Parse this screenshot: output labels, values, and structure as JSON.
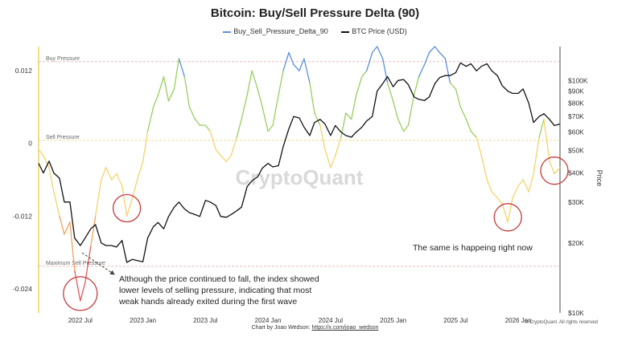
{
  "colors": {
    "red": "#e55b5b",
    "orange": "#f0a35e",
    "yellow": "#f4d36b",
    "green": "#9acd5c",
    "blue": "#5a8fe0",
    "price": "#111111",
    "annotation_circle": "#c63b3b",
    "threshold_line": "#e9a1a1",
    "sell_line": "#e8d783"
  },
  "chart_data": {
    "type": "line",
    "title": "Bitcoin: Buy/Sell Pressure Delta (90)",
    "legend": {
      "placement": "top-center",
      "items": [
        {
          "label": "Buy_Sell_Pressure_Delta_90",
          "color": "#5a8fe0"
        },
        {
          "label": "BTC Price (USD)",
          "color": "#111111"
        }
      ]
    },
    "x": {
      "range": [
        "2022-03",
        "2026-05"
      ],
      "tick_labels": [
        "2022 Jul",
        "2023 Jan",
        "2023 Jul",
        "2024 Jan",
        "2024 Jul",
        "2025 Jan",
        "2025 Jul",
        "2026 Jan"
      ]
    },
    "y_left": {
      "range": [
        -0.028,
        0.016
      ],
      "tick_values": [
        0.012,
        0,
        -0.012,
        -0.024
      ],
      "tick_labels": [
        "0.012",
        "0",
        "-0.012",
        "-0.024"
      ]
    },
    "y_right": {
      "label": "Price",
      "scale": "log",
      "range": [
        10000,
        140000
      ],
      "tick_labels": [
        "$100K",
        "$90K",
        "$80K",
        "$70K",
        "$60K",
        "$50K",
        "$40K",
        "$30K",
        "$20K",
        "$10K"
      ],
      "tick_values": [
        100000,
        90000,
        80000,
        70000,
        60000,
        50000,
        40000,
        30000,
        20000,
        10000
      ]
    },
    "thresholds": [
      {
        "label": "Buy Pressure",
        "value": 0.0135
      },
      {
        "label": "Sell Pressure",
        "value": 0.0005
      },
      {
        "label": "Maximum Sell Pressure",
        "value": -0.0203
      }
    ],
    "series": [
      {
        "name": "Buy_Sell_Pressure_Delta_90",
        "axis": "left",
        "points": [
          [
            "2022-03-01",
            -0.001
          ],
          [
            "2022-03-15",
            -0.002
          ],
          [
            "2022-04-01",
            -0.004
          ],
          [
            "2022-04-15",
            -0.008
          ],
          [
            "2022-05-01",
            -0.012
          ],
          [
            "2022-05-15",
            -0.015
          ],
          [
            "2022-06-01",
            -0.013
          ],
          [
            "2022-06-15",
            -0.021
          ],
          [
            "2022-07-01",
            -0.026
          ],
          [
            "2022-07-15",
            -0.023
          ],
          [
            "2022-08-01",
            -0.017
          ],
          [
            "2022-08-15",
            -0.012
          ],
          [
            "2022-09-01",
            -0.006
          ],
          [
            "2022-09-15",
            -0.004
          ],
          [
            "2022-10-01",
            -0.006
          ],
          [
            "2022-10-15",
            -0.005
          ],
          [
            "2022-11-01",
            -0.007
          ],
          [
            "2022-11-15",
            -0.012
          ],
          [
            "2022-12-01",
            -0.009
          ],
          [
            "2022-12-15",
            -0.006
          ],
          [
            "2023-01-01",
            -0.003
          ],
          [
            "2023-01-15",
            0.002
          ],
          [
            "2023-02-01",
            0.006
          ],
          [
            "2023-02-15",
            0.008
          ],
          [
            "2023-03-01",
            0.011
          ],
          [
            "2023-03-15",
            0.007
          ],
          [
            "2023-04-01",
            0.009
          ],
          [
            "2023-04-15",
            0.014
          ],
          [
            "2023-05-01",
            0.011
          ],
          [
            "2023-05-15",
            0.006
          ],
          [
            "2023-06-01",
            0.004
          ],
          [
            "2023-06-15",
            0.003
          ],
          [
            "2023-07-01",
            0.003
          ],
          [
            "2023-07-15",
            0.002
          ],
          [
            "2023-08-01",
            -0.001
          ],
          [
            "2023-08-15",
            -0.002
          ],
          [
            "2023-09-01",
            -0.003
          ],
          [
            "2023-09-15",
            -0.002
          ],
          [
            "2023-10-01",
            0.001
          ],
          [
            "2023-10-15",
            0.004
          ],
          [
            "2023-11-01",
            0.008
          ],
          [
            "2023-11-15",
            0.012
          ],
          [
            "2023-12-01",
            0.009
          ],
          [
            "2023-12-15",
            0.006
          ],
          [
            "2024-01-01",
            0.002
          ],
          [
            "2024-01-15",
            0.003
          ],
          [
            "2024-02-01",
            0.008
          ],
          [
            "2024-02-15",
            0.012
          ],
          [
            "2024-03-01",
            0.015
          ],
          [
            "2024-03-15",
            0.013
          ],
          [
            "2024-04-01",
            0.012
          ],
          [
            "2024-04-15",
            0.014
          ],
          [
            "2024-05-01",
            0.01
          ],
          [
            "2024-05-15",
            0.005
          ],
          [
            "2024-06-01",
            0.003
          ],
          [
            "2024-06-15",
            -0.001
          ],
          [
            "2024-07-01",
            -0.004
          ],
          [
            "2024-07-15",
            -0.002
          ],
          [
            "2024-08-01",
            0.001
          ],
          [
            "2024-08-15",
            0.005
          ],
          [
            "2024-09-01",
            0.004
          ],
          [
            "2024-09-15",
            0.008
          ],
          [
            "2024-10-01",
            0.011
          ],
          [
            "2024-10-15",
            0.012
          ],
          [
            "2024-11-01",
            0.015
          ],
          [
            "2024-11-15",
            0.016
          ],
          [
            "2024-12-01",
            0.014
          ],
          [
            "2024-12-15",
            0.01
          ],
          [
            "2025-01-01",
            0.007
          ],
          [
            "2025-01-15",
            0.004
          ],
          [
            "2025-02-01",
            0.002
          ],
          [
            "2025-02-15",
            0.003
          ],
          [
            "2025-03-01",
            0.008
          ],
          [
            "2025-03-15",
            0.011
          ],
          [
            "2025-04-01",
            0.013
          ],
          [
            "2025-04-15",
            0.015
          ],
          [
            "2025-05-01",
            0.016
          ],
          [
            "2025-05-15",
            0.015
          ],
          [
            "2025-06-01",
            0.014
          ],
          [
            "2025-06-15",
            0.01
          ],
          [
            "2025-07-01",
            0.009
          ],
          [
            "2025-07-15",
            0.006
          ],
          [
            "2025-08-01",
            0.004
          ],
          [
            "2025-08-15",
            0.002
          ],
          [
            "2025-09-01",
            0.001
          ],
          [
            "2025-09-15",
            -0.002
          ],
          [
            "2025-10-01",
            -0.006
          ],
          [
            "2025-10-15",
            -0.008
          ],
          [
            "2025-11-01",
            -0.009
          ],
          [
            "2025-11-15",
            -0.01
          ],
          [
            "2025-12-01",
            -0.013
          ],
          [
            "2025-12-15",
            -0.009
          ],
          [
            "2026-01-01",
            -0.007
          ],
          [
            "2026-01-15",
            -0.006
          ],
          [
            "2026-02-01",
            -0.008
          ],
          [
            "2026-02-15",
            -0.005
          ],
          [
            "2026-03-01",
            0.001
          ],
          [
            "2026-03-15",
            0.004
          ],
          [
            "2026-04-01",
            -0.003
          ],
          [
            "2026-04-15",
            -0.005
          ],
          [
            "2026-05-01",
            -0.004
          ]
        ]
      },
      {
        "name": "BTC Price (USD)",
        "axis": "right",
        "points": [
          [
            "2022-03-01",
            44000
          ],
          [
            "2022-03-15",
            40000
          ],
          [
            "2022-04-01",
            45000
          ],
          [
            "2022-04-15",
            40000
          ],
          [
            "2022-05-01",
            38000
          ],
          [
            "2022-05-15",
            30000
          ],
          [
            "2022-06-01",
            30000
          ],
          [
            "2022-06-15",
            21000
          ],
          [
            "2022-07-01",
            19500
          ],
          [
            "2022-07-15",
            21000
          ],
          [
            "2022-08-01",
            23000
          ],
          [
            "2022-08-15",
            24000
          ],
          [
            "2022-09-01",
            20000
          ],
          [
            "2022-09-15",
            19500
          ],
          [
            "2022-10-01",
            19500
          ],
          [
            "2022-10-15",
            19200
          ],
          [
            "2022-11-01",
            20500
          ],
          [
            "2022-11-15",
            16500
          ],
          [
            "2022-12-01",
            17000
          ],
          [
            "2022-12-15",
            16800
          ],
          [
            "2023-01-01",
            16600
          ],
          [
            "2023-01-15",
            21000
          ],
          [
            "2023-02-01",
            23500
          ],
          [
            "2023-02-15",
            24500
          ],
          [
            "2023-03-01",
            23000
          ],
          [
            "2023-03-15",
            26000
          ],
          [
            "2023-04-01",
            28500
          ],
          [
            "2023-04-15",
            30000
          ],
          [
            "2023-05-01",
            28000
          ],
          [
            "2023-05-15",
            27000
          ],
          [
            "2023-06-01",
            26500
          ],
          [
            "2023-06-15",
            26000
          ],
          [
            "2023-07-01",
            30500
          ],
          [
            "2023-07-15",
            30000
          ],
          [
            "2023-08-01",
            29000
          ],
          [
            "2023-08-15",
            26000
          ],
          [
            "2023-09-01",
            25800
          ],
          [
            "2023-09-15",
            26500
          ],
          [
            "2023-10-01",
            27500
          ],
          [
            "2023-10-15",
            28500
          ],
          [
            "2023-11-01",
            35000
          ],
          [
            "2023-11-15",
            37000
          ],
          [
            "2023-12-01",
            38500
          ],
          [
            "2023-12-15",
            42000
          ],
          [
            "2024-01-01",
            44000
          ],
          [
            "2024-01-15",
            42500
          ],
          [
            "2024-02-01",
            43000
          ],
          [
            "2024-02-15",
            52000
          ],
          [
            "2024-03-01",
            62000
          ],
          [
            "2024-03-15",
            70000
          ],
          [
            "2024-04-01",
            69000
          ],
          [
            "2024-04-15",
            63000
          ],
          [
            "2024-05-01",
            58000
          ],
          [
            "2024-05-15",
            66000
          ],
          [
            "2024-06-01",
            68000
          ],
          [
            "2024-06-15",
            65000
          ],
          [
            "2024-07-01",
            58000
          ],
          [
            "2024-07-15",
            64000
          ],
          [
            "2024-08-01",
            60000
          ],
          [
            "2024-08-15",
            58000
          ],
          [
            "2024-09-01",
            57000
          ],
          [
            "2024-09-15",
            60000
          ],
          [
            "2024-10-01",
            63000
          ],
          [
            "2024-10-15",
            67000
          ],
          [
            "2024-11-01",
            70000
          ],
          [
            "2024-11-15",
            90000
          ],
          [
            "2024-12-01",
            97000
          ],
          [
            "2024-12-15",
            104000
          ],
          [
            "2025-01-01",
            94000
          ],
          [
            "2025-01-15",
            100000
          ],
          [
            "2025-02-01",
            101000
          ],
          [
            "2025-02-15",
            96000
          ],
          [
            "2025-03-01",
            85000
          ],
          [
            "2025-03-15",
            83000
          ],
          [
            "2025-04-01",
            82000
          ],
          [
            "2025-04-15",
            85000
          ],
          [
            "2025-05-01",
            97000
          ],
          [
            "2025-05-15",
            103000
          ],
          [
            "2025-06-01",
            105000
          ],
          [
            "2025-06-15",
            105000
          ],
          [
            "2025-07-01",
            108000
          ],
          [
            "2025-07-15",
            119000
          ],
          [
            "2025-08-01",
            115000
          ],
          [
            "2025-08-15",
            118000
          ],
          [
            "2025-09-01",
            110000
          ],
          [
            "2025-09-15",
            115000
          ],
          [
            "2025-10-01",
            118000
          ],
          [
            "2025-10-15",
            110000
          ],
          [
            "2025-11-01",
            105000
          ],
          [
            "2025-11-15",
            95000
          ],
          [
            "2025-12-01",
            90000
          ],
          [
            "2025-12-15",
            88000
          ],
          [
            "2026-01-01",
            88000
          ],
          [
            "2026-01-15",
            92000
          ],
          [
            "2026-02-01",
            80000
          ],
          [
            "2026-02-15",
            66000
          ],
          [
            "2026-03-01",
            70000
          ],
          [
            "2026-03-15",
            72000
          ],
          [
            "2026-04-01",
            68000
          ],
          [
            "2026-04-15",
            64000
          ],
          [
            "2026-05-01",
            65000
          ]
        ]
      }
    ],
    "annotations": [
      {
        "text": "Although the price continued to fall, the index showed\nlower levels of selling pressure, indicating that most\nweak hands already exited during the first wave",
        "anchor": "lower-left"
      },
      {
        "text": "The same is happeing right now",
        "anchor": "lower-right"
      }
    ],
    "highlight_circles": [
      {
        "date": "2022-07-01",
        "value": -0.0248
      },
      {
        "date": "2022-11-15",
        "value": -0.0107
      },
      {
        "date": "2025-12-01",
        "value": -0.0122
      },
      {
        "date": "2026-04-15",
        "value": -0.0045
      }
    ],
    "watermark": "CryptoQuant",
    "grid": false
  },
  "footer": {
    "credit_prefix": "Chart by Joao Wedson: ",
    "credit_link": "https://x.com/joao_wedson",
    "copyright": "© CryptoQuant. All rights reserved"
  }
}
